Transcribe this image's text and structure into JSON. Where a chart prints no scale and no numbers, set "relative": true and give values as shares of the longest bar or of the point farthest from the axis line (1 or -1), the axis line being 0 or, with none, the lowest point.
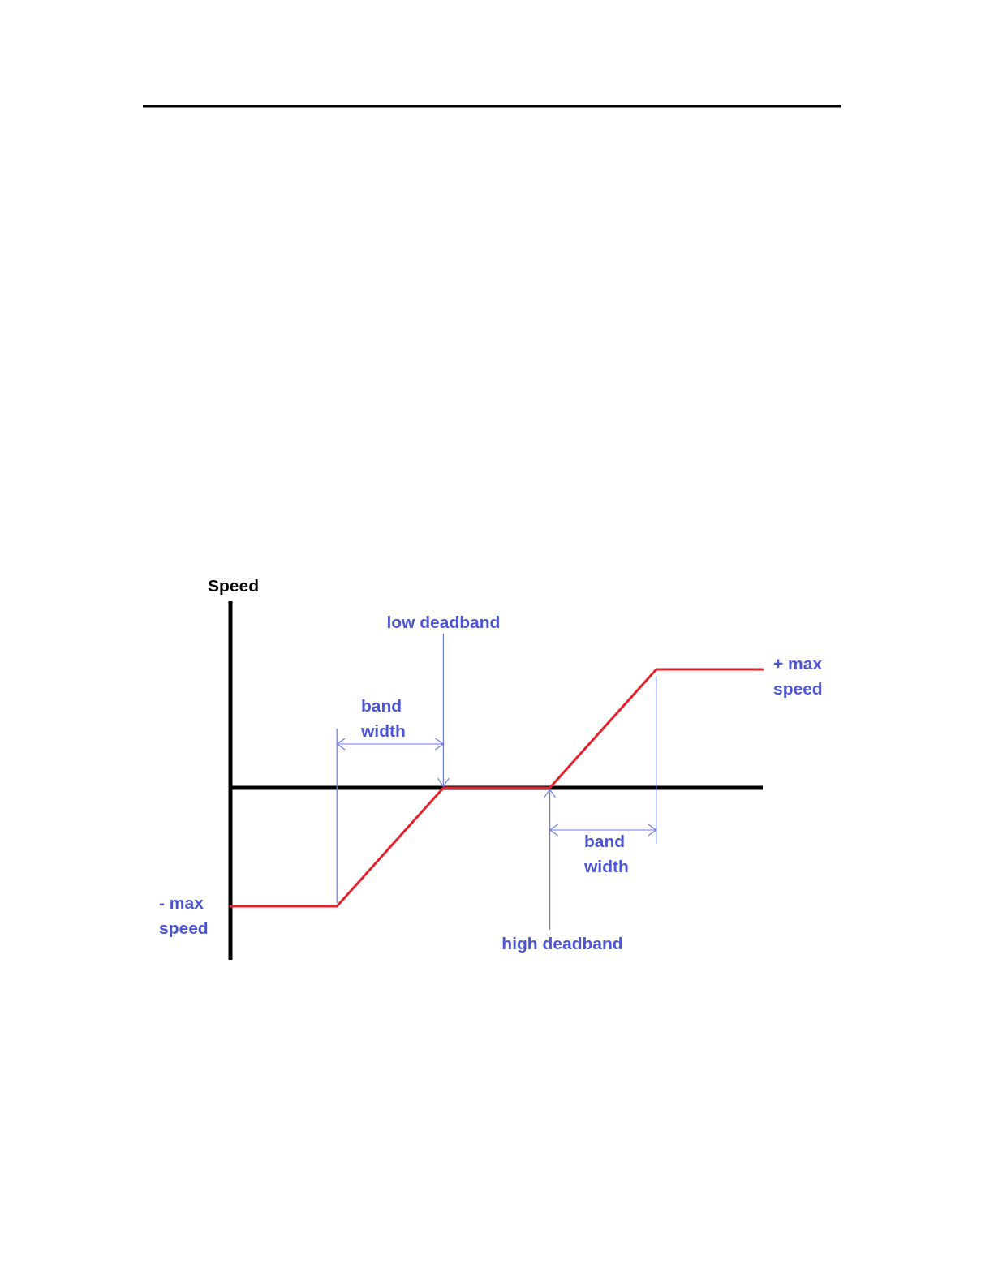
{
  "chart_data": {
    "type": "line",
    "relative": true,
    "ylabel": "Speed",
    "categories": [
      null,
      null,
      null,
      null,
      null,
      null
    ],
    "series": [
      {
        "color": "#e8202a",
        "values": [
          -1,
          -1,
          0,
          0,
          1,
          1
        ]
      }
    ],
    "marker": "none",
    "line_style": "solid",
    "annotations": [
      "low deadband",
      "band width",
      "+ max speed",
      "high deadband",
      "band width",
      "- max speed"
    ]
  }
}
